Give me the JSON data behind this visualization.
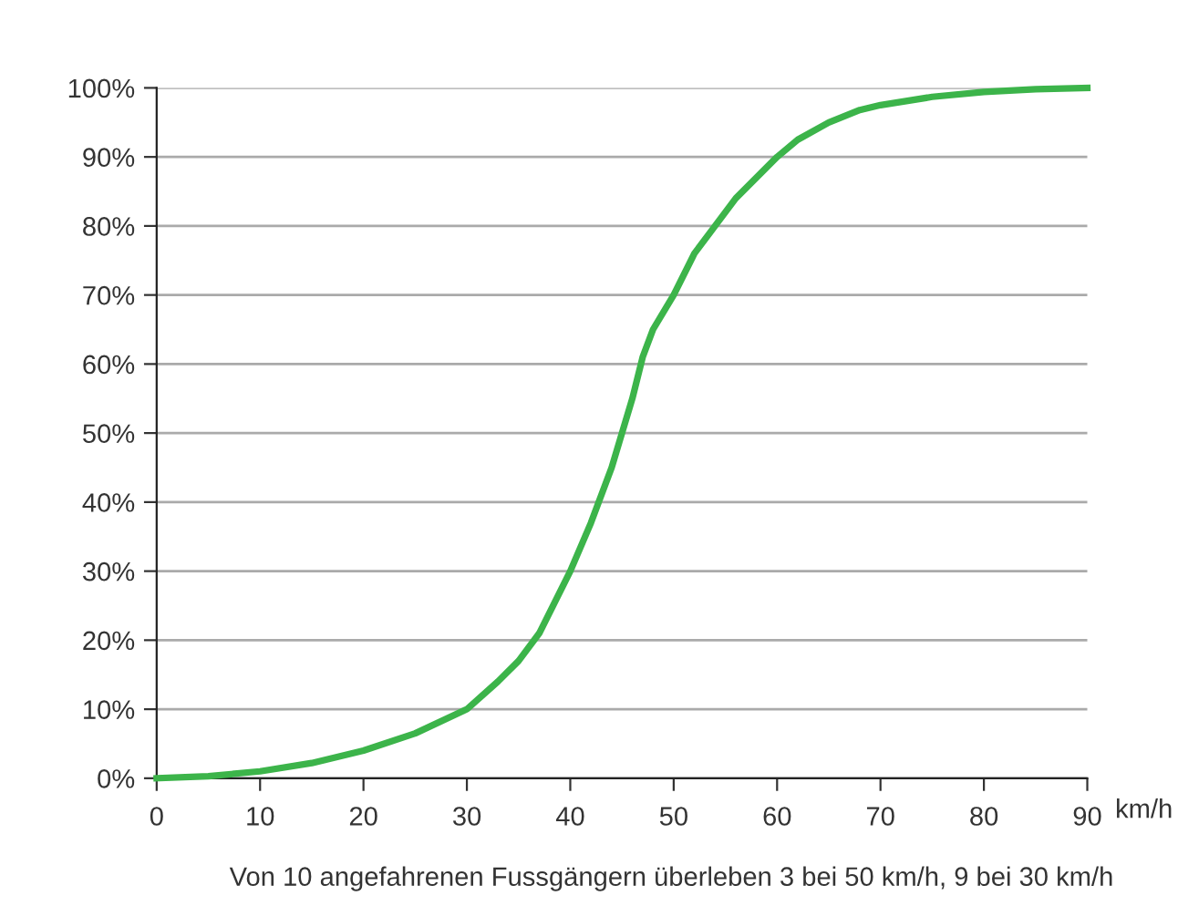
{
  "chart_data": {
    "type": "line",
    "xlabel": "km/h",
    "x": [
      0,
      5,
      10,
      15,
      20,
      25,
      30,
      33,
      35,
      37,
      40,
      42,
      44,
      46,
      47,
      48,
      50,
      52,
      54,
      56,
      58,
      60,
      62,
      65,
      68,
      70,
      75,
      80,
      85,
      90
    ],
    "series": [
      {
        "color": "#3cb44a",
        "values": [
          0,
          0.3,
          1,
          2.2,
          4,
          6.5,
          10,
          14,
          17,
          21,
          30,
          37,
          45,
          55,
          61,
          65,
          70,
          76,
          80,
          84,
          87,
          90,
          92.5,
          95,
          96.8,
          97.5,
          98.7,
          99.4,
          99.8,
          100
        ]
      }
    ],
    "xlim": [
      0,
      90
    ],
    "xticks": [
      0,
      10,
      20,
      30,
      40,
      50,
      60,
      70,
      80,
      90
    ],
    "ylim": [
      0,
      100
    ],
    "yticks": [
      {
        "value": 0,
        "label": "0%"
      },
      {
        "value": 10,
        "label": "10%"
      },
      {
        "value": 20,
        "label": "20%"
      },
      {
        "value": 30,
        "label": "30%"
      },
      {
        "value": 40,
        "label": "40%"
      },
      {
        "value": 50,
        "label": "50%"
      },
      {
        "value": 60,
        "label": "60%"
      },
      {
        "value": 70,
        "label": "70%"
      },
      {
        "value": 80,
        "label": "80%"
      },
      {
        "value": 90,
        "label": "90%"
      },
      {
        "value": 100,
        "label": "100%"
      }
    ],
    "grid": "y",
    "marker": "none",
    "line_style": "solid",
    "annotations": [
      "Von 10 angefahrenen Fussgängern überleben 3 bei 50 km/h, 9 bei 30 km/h"
    ]
  }
}
